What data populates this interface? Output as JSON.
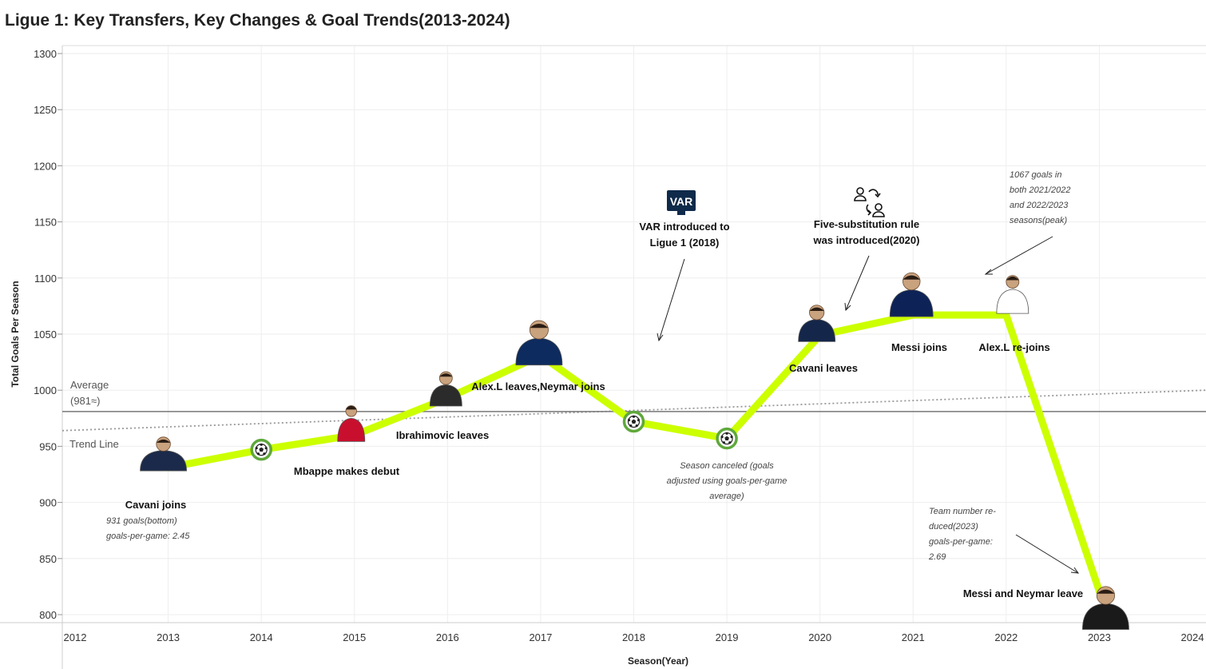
{
  "title": "Ligue 1: Key Transfers, Key Changes & Goal Trends(2013-2024)",
  "colors": {
    "line": "#ccff00",
    "ball_ring": "#5fa83c",
    "average": "#777777",
    "trend": "#999999",
    "grid": "#eeeeee"
  },
  "chart_data": {
    "type": "line",
    "title": "Ligue 1: Key Transfers, Key Changes & Goal Trends(2013-2024)",
    "xlabel": "Season(Year)",
    "ylabel": "Total Goals Per Season",
    "xlim": [
      2012,
      2024
    ],
    "ylim": [
      800,
      1300
    ],
    "x_ticks": [
      2012,
      2013,
      2014,
      2015,
      2016,
      2017,
      2018,
      2019,
      2020,
      2021,
      2022,
      2023,
      2024
    ],
    "y_ticks": [
      800,
      850,
      900,
      950,
      1000,
      1050,
      1100,
      1150,
      1200,
      1250,
      1300
    ],
    "series": [
      {
        "name": "Total Goals Per Season",
        "x": [
          2013,
          2014,
          2015,
          2016,
          2017,
          2018,
          2019,
          2020,
          2021,
          2022,
          2023
        ],
        "values": [
          931,
          947,
          960,
          993,
          1031,
          972,
          957,
          1049,
          1067,
          1067,
          821
        ]
      }
    ],
    "reference_lines": {
      "average": {
        "value": 981,
        "label": "Average",
        "sublabel": "(981≈)"
      },
      "trend": {
        "label": "Trend Line",
        "start": [
          2012,
          964
        ],
        "end": [
          2024,
          1000
        ]
      }
    },
    "ball_markers": [
      2014,
      2018,
      2019
    ],
    "events": [
      {
        "year": 2013,
        "label": "Cavani joins",
        "icon": "player-photo-icon"
      },
      {
        "year": 2015,
        "label": "Mbappe makes debut",
        "icon": "player-photo-icon"
      },
      {
        "year": 2016,
        "label": "Ibrahimovic leaves",
        "icon": "player-photo-icon"
      },
      {
        "year": 2017,
        "label": "Alex.L leaves,Neymar joins",
        "icon": "player-photo-icon"
      },
      {
        "year": 2020,
        "label": "Cavani leaves",
        "icon": "player-photo-icon"
      },
      {
        "year": 2021,
        "label": "Messi joins",
        "icon": "player-photo-icon"
      },
      {
        "year": 2022,
        "label": "Alex.L re-joins",
        "icon": "player-photo-icon"
      },
      {
        "year": 2023,
        "label": "Messi and Neymar leave",
        "icon": "player-photo-icon"
      }
    ],
    "annotations": [
      {
        "id": "var",
        "lines": [
          "VAR introduced to",
          "Ligue 1 (2018)"
        ],
        "icon_text": "VAR"
      },
      {
        "id": "subs",
        "lines": [
          "Five-substitution rule",
          "was introduced(2020)"
        ]
      },
      {
        "id": "peak",
        "lines": [
          "1067 goals in",
          "both 2021/2022",
          "and 2022/2023",
          "seasons(peak)"
        ]
      },
      {
        "id": "bottom",
        "lines": [
          "931 goals(bottom)",
          "goals-per-game: 2.45"
        ]
      },
      {
        "id": "canceled",
        "lines": [
          "Season canceled (goals",
          "adjusted using goals-per-game",
          "average)"
        ]
      },
      {
        "id": "teams",
        "lines": [
          "Team number re-",
          "duced(2023)",
          "goals-per-game:",
          "2.69"
        ]
      }
    ]
  }
}
